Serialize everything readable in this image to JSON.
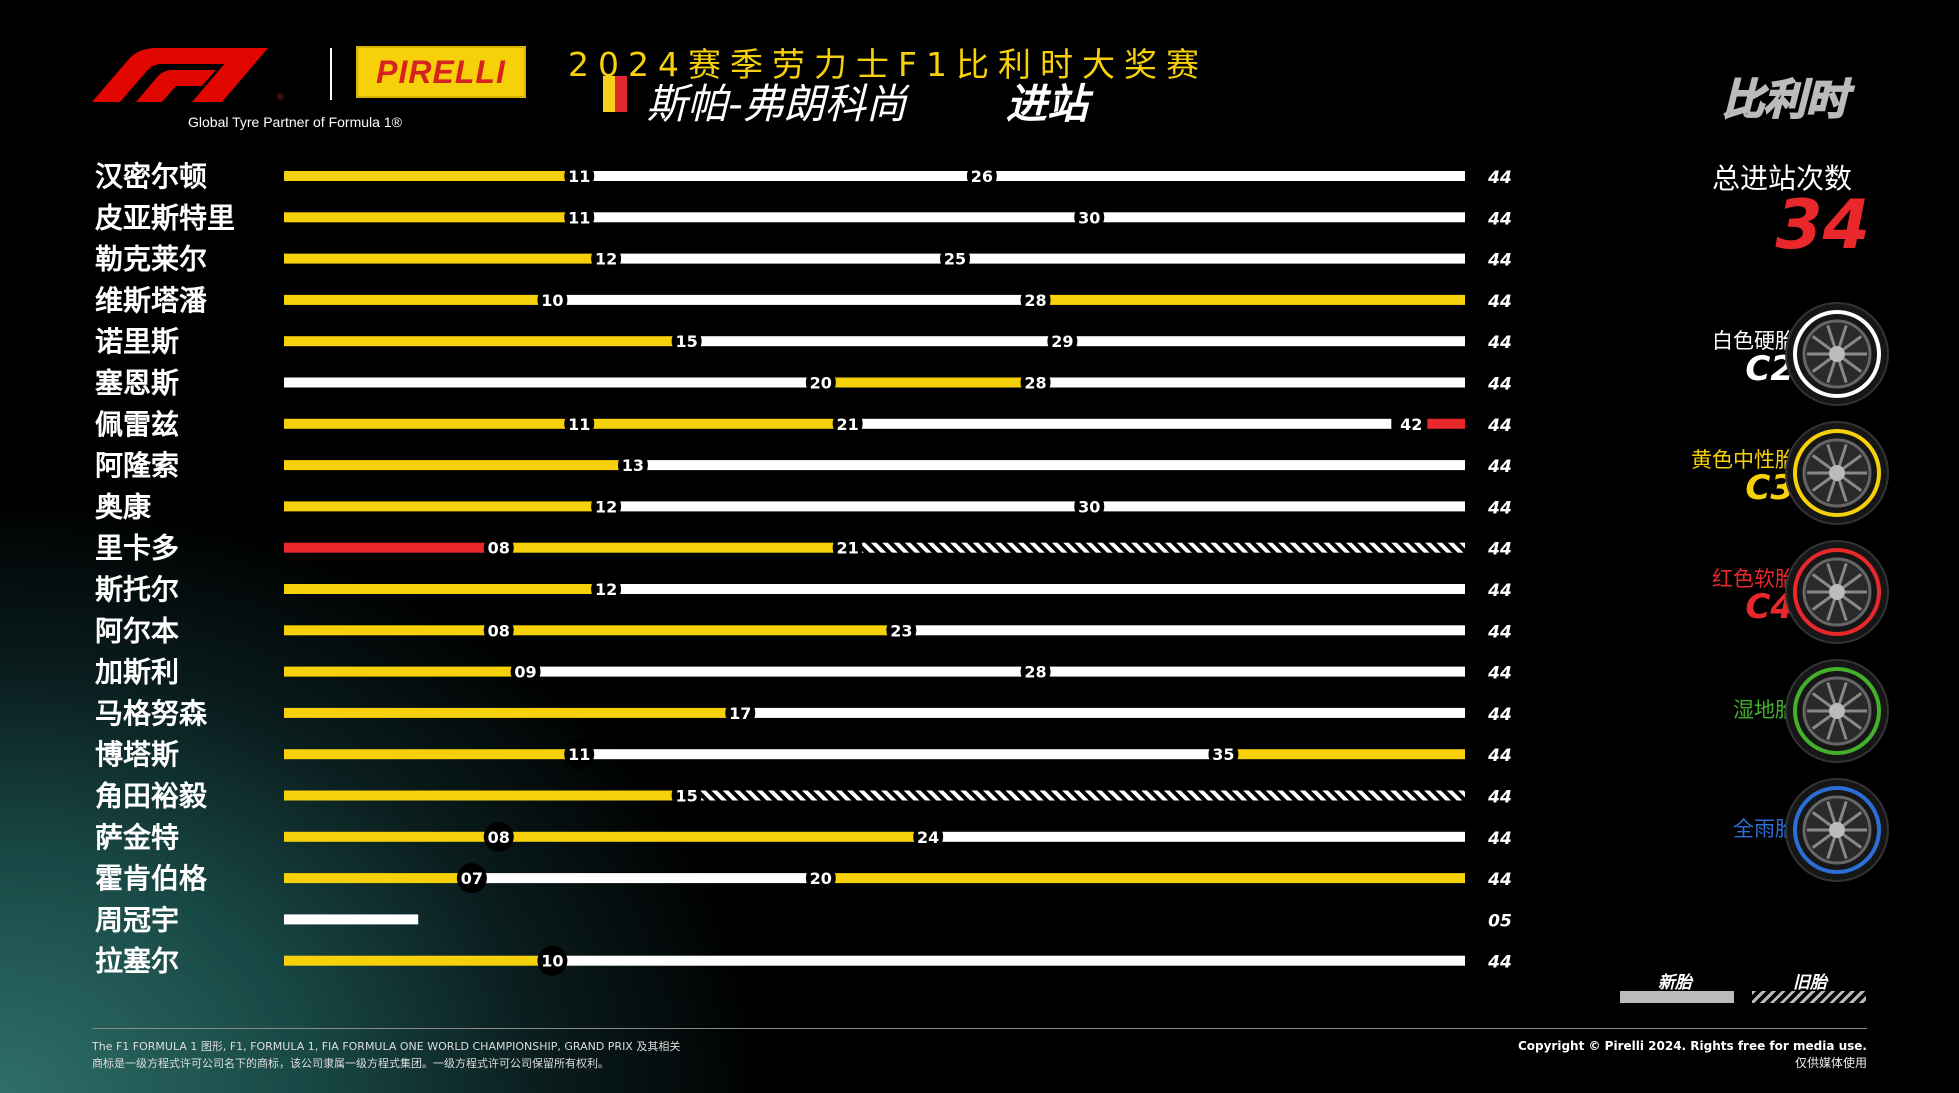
{
  "header": {
    "tyre_partner": "Global Tyre Partner of Formula 1®",
    "pirelli": "PIRELLI",
    "event_title": "2024赛季劳力士F1比利时大奖赛",
    "track_name": "斯帕-弗朗科尚",
    "stops_label": "进站",
    "country": "比利时"
  },
  "total": {
    "label": "总进站次数",
    "value": "34"
  },
  "legend": [
    {
      "name": "白色硬胎",
      "code": "C2",
      "color": "#ffffff"
    },
    {
      "name": "黄色中性胎",
      "code": "C3",
      "color": "#f6d10a"
    },
    {
      "name": "红色软胎",
      "code": "C4",
      "color": "#e8282b"
    },
    {
      "name": "湿地胎",
      "code": "",
      "color": "#43b02a"
    },
    {
      "name": "全雨胎",
      "code": "",
      "color": "#2b6fd6"
    }
  ],
  "key": {
    "new": "新胎",
    "used": "旧胎"
  },
  "footer": {
    "left_line1": "The F1 FORMULA 1 图形, F1, FORMULA 1, FIA FORMULA ONE WORLD CHAMPIONSHIP, GRAND PRIX 及其相关",
    "left_line2": "商标是一级方程式许可公司名下的商标，该公司隶属一级方程式集团。一级方程式许可公司保留所有权利。",
    "right_line1": "Copyright © Pirelli 2024. Rights free for media use.",
    "right_line2": "仅供媒体使用"
  },
  "chart_data": {
    "type": "bar",
    "title": "斯帕-弗朗科尚 进站",
    "total_laps": 44,
    "compound_colors": {
      "hard": "#ffffff",
      "medium": "#f6d10a",
      "soft": "#e8282b"
    },
    "drivers": [
      {
        "name": "汉密尔顿",
        "end": "44",
        "stints": [
          {
            "c": "medium",
            "from": 0,
            "to": 11,
            "used": false
          },
          {
            "c": "hard",
            "from": 11,
            "to": 26,
            "used": false
          },
          {
            "c": "hard",
            "from": 26,
            "to": 44,
            "used": false
          }
        ]
      },
      {
        "name": "皮亚斯特里",
        "end": "44",
        "stints": [
          {
            "c": "medium",
            "from": 0,
            "to": 11,
            "used": false
          },
          {
            "c": "hard",
            "from": 11,
            "to": 30,
            "used": false
          },
          {
            "c": "hard",
            "from": 30,
            "to": 44,
            "used": false
          }
        ]
      },
      {
        "name": "勒克莱尔",
        "end": "44",
        "stints": [
          {
            "c": "medium",
            "from": 0,
            "to": 12,
            "used": false
          },
          {
            "c": "hard",
            "from": 12,
            "to": 25,
            "used": false
          },
          {
            "c": "hard",
            "from": 25,
            "to": 44,
            "used": false
          }
        ]
      },
      {
        "name": "维斯塔潘",
        "end": "44",
        "stints": [
          {
            "c": "medium",
            "from": 0,
            "to": 10,
            "used": false
          },
          {
            "c": "hard",
            "from": 10,
            "to": 28,
            "used": false
          },
          {
            "c": "medium",
            "from": 28,
            "to": 44,
            "used": false
          }
        ]
      },
      {
        "name": "诺里斯",
        "end": "44",
        "stints": [
          {
            "c": "medium",
            "from": 0,
            "to": 15,
            "used": false
          },
          {
            "c": "hard",
            "from": 15,
            "to": 29,
            "used": false
          },
          {
            "c": "hard",
            "from": 29,
            "to": 44,
            "used": false
          }
        ]
      },
      {
        "name": "塞恩斯",
        "end": "44",
        "stints": [
          {
            "c": "hard",
            "from": 0,
            "to": 20,
            "used": false
          },
          {
            "c": "medium",
            "from": 20,
            "to": 28,
            "used": false
          },
          {
            "c": "hard",
            "from": 28,
            "to": 44,
            "used": false
          }
        ]
      },
      {
        "name": "佩雷兹",
        "end": "44",
        "stints": [
          {
            "c": "medium",
            "from": 0,
            "to": 11,
            "used": false
          },
          {
            "c": "medium",
            "from": 11,
            "to": 21,
            "used": false
          },
          {
            "c": "hard",
            "from": 21,
            "to": 42,
            "used": false
          },
          {
            "c": "soft",
            "from": 42,
            "to": 44,
            "used": false
          }
        ]
      },
      {
        "name": "阿隆索",
        "end": "44",
        "stints": [
          {
            "c": "medium",
            "from": 0,
            "to": 13,
            "used": false
          },
          {
            "c": "hard",
            "from": 13,
            "to": 44,
            "used": false
          }
        ]
      },
      {
        "name": "奥康",
        "end": "44",
        "stints": [
          {
            "c": "medium",
            "from": 0,
            "to": 12,
            "used": false
          },
          {
            "c": "hard",
            "from": 12,
            "to": 30,
            "used": false
          },
          {
            "c": "hard",
            "from": 30,
            "to": 44,
            "used": false
          }
        ]
      },
      {
        "name": "里卡多",
        "end": "44",
        "stints": [
          {
            "c": "soft",
            "from": 0,
            "to": 8,
            "used": false
          },
          {
            "c": "medium",
            "from": 8,
            "to": 21,
            "used": false
          },
          {
            "c": "hard",
            "from": 21,
            "to": 44,
            "used": true
          }
        ]
      },
      {
        "name": "斯托尔",
        "end": "44",
        "stints": [
          {
            "c": "medium",
            "from": 0,
            "to": 12,
            "used": false
          },
          {
            "c": "hard",
            "from": 12,
            "to": 44,
            "used": false
          }
        ]
      },
      {
        "name": "阿尔本",
        "end": "44",
        "stints": [
          {
            "c": "medium",
            "from": 0,
            "to": 8,
            "used": false
          },
          {
            "c": "medium",
            "from": 8,
            "to": 23,
            "used": false
          },
          {
            "c": "hard",
            "from": 23,
            "to": 44,
            "used": false
          }
        ]
      },
      {
        "name": "加斯利",
        "end": "44",
        "stints": [
          {
            "c": "medium",
            "from": 0,
            "to": 9,
            "used": false
          },
          {
            "c": "hard",
            "from": 9,
            "to": 28,
            "used": false
          },
          {
            "c": "hard",
            "from": 28,
            "to": 44,
            "used": false
          }
        ]
      },
      {
        "name": "马格努森",
        "end": "44",
        "stints": [
          {
            "c": "medium",
            "from": 0,
            "to": 17,
            "used": false
          },
          {
            "c": "hard",
            "from": 17,
            "to": 44,
            "used": false
          }
        ]
      },
      {
        "name": "博塔斯",
        "end": "44",
        "stints": [
          {
            "c": "medium",
            "from": 0,
            "to": 11,
            "used": false
          },
          {
            "c": "hard",
            "from": 11,
            "to": 35,
            "used": false
          },
          {
            "c": "medium",
            "from": 35,
            "to": 44,
            "used": false
          }
        ]
      },
      {
        "name": "角田裕毅",
        "end": "44",
        "stints": [
          {
            "c": "medium",
            "from": 0,
            "to": 15,
            "used": false
          },
          {
            "c": "hard",
            "from": 15,
            "to": 44,
            "used": true
          }
        ]
      },
      {
        "name": "萨金特",
        "end": "44",
        "stints": [
          {
            "c": "medium",
            "from": 0,
            "to": 8,
            "used": false
          },
          {
            "c": "medium",
            "from": 8,
            "to": 24,
            "used": false
          },
          {
            "c": "hard",
            "from": 24,
            "to": 44,
            "used": false
          }
        ]
      },
      {
        "name": "霍肯伯格",
        "end": "44",
        "stints": [
          {
            "c": "medium",
            "from": 0,
            "to": 7,
            "used": false
          },
          {
            "c": "hard",
            "from": 7,
            "to": 20,
            "used": false
          },
          {
            "c": "medium",
            "from": 20,
            "to": 44,
            "used": false
          }
        ]
      },
      {
        "name": "周冠宇",
        "end": "05",
        "stints": [
          {
            "c": "hard",
            "from": 0,
            "to": 5,
            "used": false
          }
        ]
      },
      {
        "name": "拉塞尔",
        "end": "44",
        "stints": [
          {
            "c": "medium",
            "from": 0,
            "to": 10,
            "used": false
          },
          {
            "c": "hard",
            "from": 10,
            "to": 44,
            "used": false
          }
        ]
      }
    ]
  }
}
